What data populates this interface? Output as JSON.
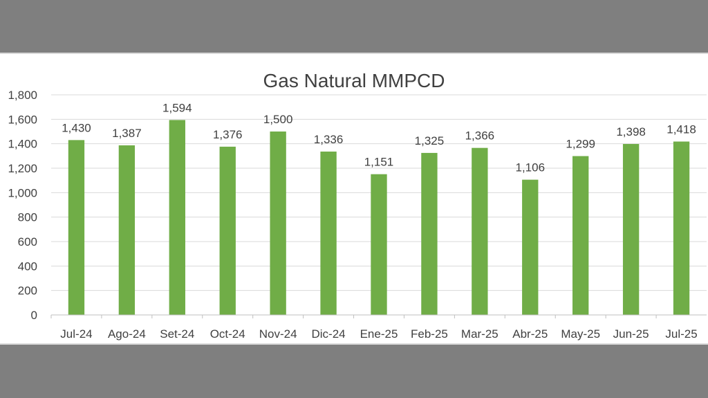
{
  "chart_data": {
    "type": "bar",
    "title": "Gas Natural MMPCD",
    "categories": [
      "Jul-24",
      "Ago-24",
      "Set-24",
      "Oct-24",
      "Nov-24",
      "Dic-24",
      "Ene-25",
      "Feb-25",
      "Mar-25",
      "Abr-25",
      "May-25",
      "Jun-25",
      "Jul-25"
    ],
    "values": [
      1430,
      1387,
      1594,
      1376,
      1500,
      1336,
      1151,
      1325,
      1366,
      1106,
      1299,
      1398,
      1418
    ],
    "value_labels": [
      "1,430",
      "1,387",
      "1,594",
      "1,376",
      "1,500",
      "1,336",
      "1,151",
      "1,325",
      "1,366",
      "1,106",
      "1,299",
      "1,398",
      "1,418"
    ],
    "ylim": [
      0,
      1800
    ],
    "yticks": [
      0,
      200,
      400,
      600,
      800,
      1000,
      1200,
      1400,
      1600,
      1800
    ],
    "ytick_labels": [
      "0",
      "200",
      "400",
      "600",
      "800",
      "1,000",
      "1,200",
      "1,400",
      "1,600",
      "1,800"
    ],
    "grid": true,
    "bar_color": "#70ad47",
    "grid_color": "#d9d9d9",
    "text_color": "#404040"
  }
}
